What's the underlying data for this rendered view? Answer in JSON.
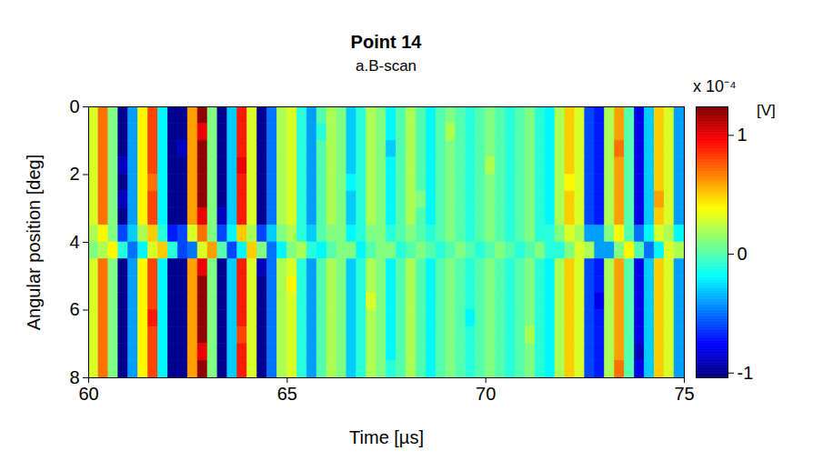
{
  "chart_data": {
    "type": "heatmap",
    "title": "Point 14",
    "subtitle": "a.B-scan",
    "x_label": "Time [µs]",
    "y_label": "Angular position [deg]",
    "xlim": [
      60,
      75
    ],
    "xticks": [
      60,
      65,
      70,
      75
    ],
    "ylim": [
      0,
      8
    ],
    "yticks": [
      0,
      2,
      4,
      6,
      8
    ],
    "x_bins": [
      60,
      60.25,
      60.5,
      60.75,
      61,
      61.25,
      61.5,
      61.75,
      62,
      62.25,
      62.5,
      62.75,
      63,
      63.25,
      63.5,
      63.75,
      64,
      64.25,
      64.5,
      64.75,
      65,
      65.25,
      65.5,
      65.75,
      66,
      66.25,
      66.5,
      66.75,
      67,
      67.25,
      67.5,
      67.75,
      68,
      68.25,
      68.5,
      68.75,
      69,
      69.25,
      69.5,
      69.75,
      70,
      70.25,
      70.5,
      70.75,
      71,
      71.25,
      71.5,
      71.75,
      72,
      72.25,
      72.5,
      72.75,
      73,
      73.25,
      73.5,
      73.75,
      74,
      74.25,
      74.5,
      74.75,
      75
    ],
    "y_bins": [
      0,
      0.5,
      1,
      1.5,
      2,
      2.5,
      3,
      3.5,
      4,
      4.5,
      5,
      5.5,
      6,
      6.5,
      7,
      7.5,
      8
    ],
    "cells": [
      [
        0.3,
        0.7,
        0.1,
        -1.0,
        -0.4,
        0.4,
        0.8,
        -0.2,
        -1.0,
        -1.0,
        0.6,
        1.2,
        0.1,
        -1.0,
        -0.3,
        0.9,
        0.3,
        -1.0,
        -0.5,
        0.2,
        0.3,
        -0.1,
        -0.4,
        0,
        0.2,
        0.1,
        -0.3,
        -0.1,
        0.2,
        0.1,
        -0.2,
        0,
        0.2,
        0,
        -0.2,
        0,
        0.1,
        0,
        -0.1,
        0,
        0.1,
        0,
        -0.1,
        0,
        0.1,
        -0.1,
        -0.2,
        0.2,
        0.5,
        0.3,
        -0.6,
        -0.7,
        0.2,
        0.6,
        0,
        -0.8,
        -0.3,
        0.5,
        0.3,
        -0.4
      ],
      [
        0.3,
        0.7,
        0.1,
        -1.0,
        -0.4,
        0.4,
        0.8,
        -0.2,
        -1.0,
        -1.0,
        0.6,
        1.0,
        0.1,
        -1.0,
        -0.3,
        0.9,
        0.3,
        -1.0,
        -0.5,
        0.2,
        0.3,
        -0.1,
        -0.4,
        -0.1,
        0.2,
        0.1,
        -0.3,
        -0.1,
        0.2,
        0.1,
        -0.2,
        0,
        0.2,
        0,
        -0.2,
        0,
        0.2,
        0,
        -0.1,
        0,
        0.1,
        0,
        -0.1,
        0,
        0.1,
        -0.1,
        -0.2,
        0.2,
        0.5,
        0.3,
        -0.6,
        -0.7,
        0.2,
        0.6,
        0,
        -0.8,
        -0.3,
        0.5,
        0.3,
        -0.4
      ],
      [
        0.3,
        0.7,
        0.1,
        -1.0,
        -0.4,
        0.4,
        0.8,
        -0.2,
        -1.0,
        -0.9,
        0.6,
        1.2,
        0.1,
        -1.0,
        -0.3,
        0.9,
        0.3,
        -1.0,
        -0.5,
        0.2,
        0.3,
        -0.1,
        -0.4,
        0,
        0.2,
        0.1,
        -0.3,
        -0.1,
        0.2,
        0.1,
        -0.3,
        0,
        0.2,
        0,
        -0.2,
        0,
        0.1,
        0,
        -0.1,
        0,
        0.1,
        0,
        -0.1,
        0,
        0.1,
        -0.1,
        -0.2,
        0.2,
        0.5,
        0.3,
        -0.6,
        -0.7,
        0.2,
        0.7,
        0,
        -0.8,
        -0.3,
        0.5,
        0.3,
        -0.4
      ],
      [
        0.3,
        0.7,
        0.1,
        -0.9,
        -0.4,
        0.4,
        0.8,
        -0.2,
        -1.0,
        -1.0,
        0.6,
        1.2,
        0.1,
        -1.0,
        -0.3,
        1.0,
        0.3,
        -1.0,
        -0.5,
        0.2,
        0.3,
        -0.1,
        -0.4,
        0,
        0.2,
        0.1,
        -0.3,
        -0.1,
        0.2,
        0.1,
        -0.2,
        0,
        0.2,
        0,
        -0.2,
        0,
        0.1,
        0,
        -0.1,
        0,
        0.2,
        0,
        -0.1,
        0,
        0.1,
        -0.1,
        -0.2,
        0.2,
        0.5,
        0.3,
        -0.6,
        -0.7,
        0.2,
        0.6,
        0,
        -0.8,
        -0.3,
        0.5,
        0.3,
        -0.4
      ],
      [
        0.3,
        0.7,
        0.1,
        -1.0,
        -0.4,
        0.4,
        0.7,
        -0.2,
        -1.0,
        -1.0,
        0.6,
        1.2,
        0.1,
        -1.0,
        -0.3,
        0.9,
        0.3,
        -1.0,
        -0.5,
        0.2,
        0.3,
        -0.1,
        -0.4,
        0,
        0.2,
        0.1,
        -0.2,
        -0.1,
        0.2,
        0.1,
        -0.2,
        0,
        0.2,
        0,
        -0.2,
        0,
        0.1,
        0,
        -0.1,
        0,
        0.1,
        0,
        -0.1,
        0,
        0.1,
        -0.1,
        -0.2,
        0.2,
        0.4,
        0.3,
        -0.6,
        -0.7,
        0.2,
        0.6,
        0,
        -0.8,
        -0.3,
        0.5,
        0.3,
        -0.4
      ],
      [
        0.3,
        0.7,
        0.1,
        -0.9,
        -0.4,
        0.4,
        0.8,
        -0.2,
        -1.0,
        -1.0,
        0.6,
        1.2,
        0.1,
        -1.0,
        -0.3,
        0.9,
        0.3,
        -1.0,
        -0.5,
        0.2,
        0.3,
        -0.1,
        -0.4,
        0,
        0.2,
        0.1,
        -0.3,
        -0.1,
        0.2,
        0.1,
        -0.2,
        0,
        0.2,
        0.1,
        -0.2,
        0,
        0.1,
        0,
        -0.1,
        0,
        0.1,
        0,
        -0.1,
        0,
        0.1,
        -0.1,
        -0.2,
        0.2,
        0.5,
        0.3,
        -0.6,
        -0.7,
        0.2,
        0.6,
        0,
        -0.8,
        -0.3,
        0.6,
        0.3,
        -0.4
      ],
      [
        0.3,
        0.7,
        0.1,
        -1.0,
        -0.4,
        0.4,
        0.8,
        -0.2,
        -1.0,
        -1.0,
        0.6,
        1.0,
        0.1,
        -0.9,
        -0.3,
        0.9,
        0.3,
        -1.0,
        -0.5,
        0.2,
        0.3,
        -0.1,
        -0.4,
        0,
        0.2,
        0.1,
        -0.3,
        -0.1,
        0.2,
        0.1,
        -0.2,
        0,
        0.2,
        0,
        -0.2,
        0,
        0.1,
        0,
        -0.1,
        0,
        0.1,
        0,
        -0.1,
        0,
        0.1,
        -0.1,
        -0.2,
        0.2,
        0.5,
        0.3,
        -0.6,
        -0.7,
        0.2,
        0.6,
        0,
        -0.8,
        -0.3,
        0.5,
        0.3,
        -0.4
      ],
      [
        0.2,
        0.4,
        0.1,
        -0.6,
        -0.3,
        0.2,
        0.5,
        -0.1,
        -0.7,
        -0.6,
        0.3,
        0.7,
        0.1,
        -0.6,
        -0.2,
        0.5,
        0.2,
        -0.6,
        -0.3,
        0.1,
        0.2,
        -0.1,
        -0.3,
        0,
        0.1,
        0.1,
        -0.2,
        -0.1,
        0.1,
        0.1,
        -0.1,
        0,
        0.1,
        0,
        -0.1,
        0,
        0.1,
        0,
        -0.1,
        0,
        0.1,
        0,
        -0.1,
        0,
        0.1,
        -0.1,
        -0.1,
        0.1,
        0.3,
        0.2,
        -0.4,
        -0.4,
        0.1,
        0.4,
        0,
        -0.5,
        -0.2,
        0.3,
        0.2,
        -0.2
      ],
      [
        0.1,
        0.2,
        0.4,
        -0.1,
        -0.5,
        -0.2,
        0.3,
        0.5,
        -0.1,
        -0.6,
        -0.5,
        0.3,
        0.6,
        0,
        -0.6,
        -0.2,
        0.5,
        0.1,
        -0.5,
        -0.2,
        0.1,
        0.2,
        -0.1,
        -0.2,
        0,
        0.1,
        0.1,
        -0.2,
        0,
        0.1,
        0.1,
        -0.1,
        0,
        0.1,
        0,
        -0.1,
        0,
        0.1,
        0,
        -0.1,
        0,
        0.1,
        0,
        -0.1,
        0,
        0.1,
        -0.1,
        -0.1,
        0.1,
        0.3,
        0.2,
        -0.4,
        -0.4,
        0.1,
        0.4,
        0,
        -0.5,
        -0.2,
        0.3,
        0.2
      ],
      [
        0.3,
        0.7,
        0.1,
        -1.0,
        -0.4,
        0.4,
        0.8,
        -0.2,
        -1.0,
        -1.0,
        0.6,
        1.0,
        0.1,
        -1.0,
        -0.3,
        0.9,
        0.3,
        -0.9,
        -0.5,
        0.2,
        0.3,
        -0.1,
        -0.4,
        0,
        0.2,
        0.1,
        -0.3,
        -0.1,
        0.2,
        0.1,
        -0.2,
        0,
        0.2,
        0,
        -0.2,
        0,
        0.1,
        0,
        -0.1,
        0,
        0.1,
        0,
        -0.1,
        0,
        0.1,
        -0.1,
        -0.2,
        0.2,
        0.5,
        0.3,
        -0.6,
        -0.7,
        0.2,
        0.6,
        0,
        -0.8,
        -0.3,
        0.5,
        0.3,
        -0.4
      ],
      [
        0.3,
        0.7,
        0.1,
        -1.0,
        -0.4,
        0.4,
        0.8,
        -0.2,
        -1.0,
        -1.0,
        0.6,
        1.2,
        0.1,
        -1.0,
        -0.3,
        0.9,
        0.3,
        -1.0,
        -0.5,
        0.2,
        0.4,
        -0.1,
        -0.4,
        0,
        0.2,
        0.1,
        -0.3,
        -0.1,
        0.2,
        0.1,
        -0.2,
        0,
        0.2,
        0,
        -0.2,
        0,
        0.1,
        0,
        -0.1,
        0,
        0.1,
        0,
        -0.1,
        0,
        0.1,
        -0.1,
        -0.2,
        0.2,
        0.5,
        0.3,
        -0.6,
        -0.7,
        0.2,
        0.6,
        0,
        -0.8,
        -0.3,
        0.5,
        0.3,
        -0.4
      ],
      [
        0.3,
        0.7,
        0.1,
        -1.0,
        -0.4,
        0.4,
        0.8,
        -0.2,
        -1.0,
        -1.0,
        0.6,
        1.2,
        0.1,
        -1.0,
        -0.3,
        0.9,
        0.3,
        -1.0,
        -0.5,
        0.2,
        0.3,
        -0.1,
        -0.4,
        0,
        0.2,
        0.1,
        -0.3,
        -0.1,
        0.3,
        0.1,
        -0.2,
        0,
        0.2,
        0,
        -0.2,
        0,
        0.1,
        0,
        -0.1,
        0,
        0.1,
        0,
        -0.1,
        0,
        0.1,
        -0.1,
        -0.2,
        0.2,
        0.5,
        0.3,
        -0.6,
        -0.8,
        0.2,
        0.6,
        0,
        -0.8,
        -0.3,
        0.5,
        0.3,
        -0.4
      ],
      [
        0.3,
        0.7,
        0.1,
        -1.0,
        -0.4,
        0.4,
        0.9,
        -0.2,
        -1.0,
        -1.0,
        0.6,
        1.2,
        0.1,
        -1.0,
        -0.3,
        0.9,
        0.3,
        -1.0,
        -0.5,
        0.2,
        0.3,
        -0.1,
        -0.4,
        0,
        0.2,
        0.1,
        -0.3,
        -0.1,
        0.2,
        0.1,
        -0.2,
        0,
        0.2,
        0,
        -0.2,
        0,
        0.1,
        0,
        -0.2,
        0,
        0.1,
        0,
        -0.1,
        0,
        0.1,
        -0.1,
        -0.2,
        0.2,
        0.5,
        0.3,
        -0.6,
        -0.7,
        0.2,
        0.6,
        0,
        -0.8,
        -0.3,
        0.5,
        0.3,
        -0.4
      ],
      [
        0.3,
        0.7,
        0.1,
        -1.0,
        -0.4,
        0.4,
        0.8,
        -0.2,
        -1.0,
        -1.0,
        0.6,
        1.2,
        0.1,
        -1.0,
        -0.3,
        0.8,
        0.3,
        -1.0,
        -0.5,
        0.2,
        0.3,
        -0.1,
        -0.4,
        0,
        0.2,
        0.1,
        -0.3,
        -0.1,
        0.2,
        0.1,
        -0.2,
        0,
        0.2,
        0,
        -0.2,
        0,
        0.1,
        0,
        -0.1,
        0,
        0.1,
        0,
        -0.1,
        0,
        0.2,
        -0.1,
        -0.2,
        0.2,
        0.5,
        0.3,
        -0.6,
        -0.7,
        0.2,
        0.6,
        0,
        -0.8,
        -0.3,
        0.5,
        0.3,
        -0.4
      ],
      [
        0.3,
        0.7,
        0.1,
        -1.0,
        -0.4,
        0.4,
        0.8,
        -0.2,
        -1.0,
        -1.0,
        0.6,
        1.0,
        0.1,
        -1.0,
        -0.3,
        0.9,
        0.3,
        -1.0,
        -0.5,
        0.2,
        0.3,
        -0.1,
        -0.4,
        0,
        0.2,
        0.1,
        -0.3,
        -0.1,
        0.2,
        0.1,
        -0.2,
        0,
        0.2,
        0,
        -0.2,
        0,
        0.1,
        0,
        -0.1,
        0,
        0.1,
        0,
        -0.1,
        0,
        0.1,
        -0.1,
        -0.2,
        0.2,
        0.5,
        0.3,
        -0.6,
        -0.7,
        0.2,
        0.6,
        0,
        -0.9,
        -0.3,
        0.5,
        0.3,
        -0.4
      ],
      [
        0.3,
        0.7,
        0.1,
        -1.0,
        -0.4,
        0.4,
        0.8,
        -0.2,
        -1.0,
        -1.0,
        0.6,
        1.2,
        0.1,
        -1.0,
        -0.3,
        0.9,
        0.3,
        -1.0,
        -0.5,
        0.2,
        0.3,
        -0.1,
        -0.4,
        0,
        0.2,
        0.1,
        -0.3,
        -0.1,
        0.2,
        0.1,
        -0.1,
        0,
        0.2,
        0,
        -0.2,
        0,
        0.1,
        0,
        -0.1,
        0,
        0.1,
        0,
        -0.1,
        0,
        0.1,
        -0.1,
        -0.2,
        0.2,
        0.5,
        0.3,
        -0.6,
        -0.7,
        0.2,
        0.7,
        0,
        -0.8,
        -0.3,
        0.5,
        0.3,
        -0.4
      ]
    ],
    "colorbar": {
      "label": "[V]",
      "multiplier": "x 10⁻⁴",
      "range": [
        -1.04,
        1.24
      ],
      "ticks": [
        -1,
        0,
        1
      ]
    }
  }
}
